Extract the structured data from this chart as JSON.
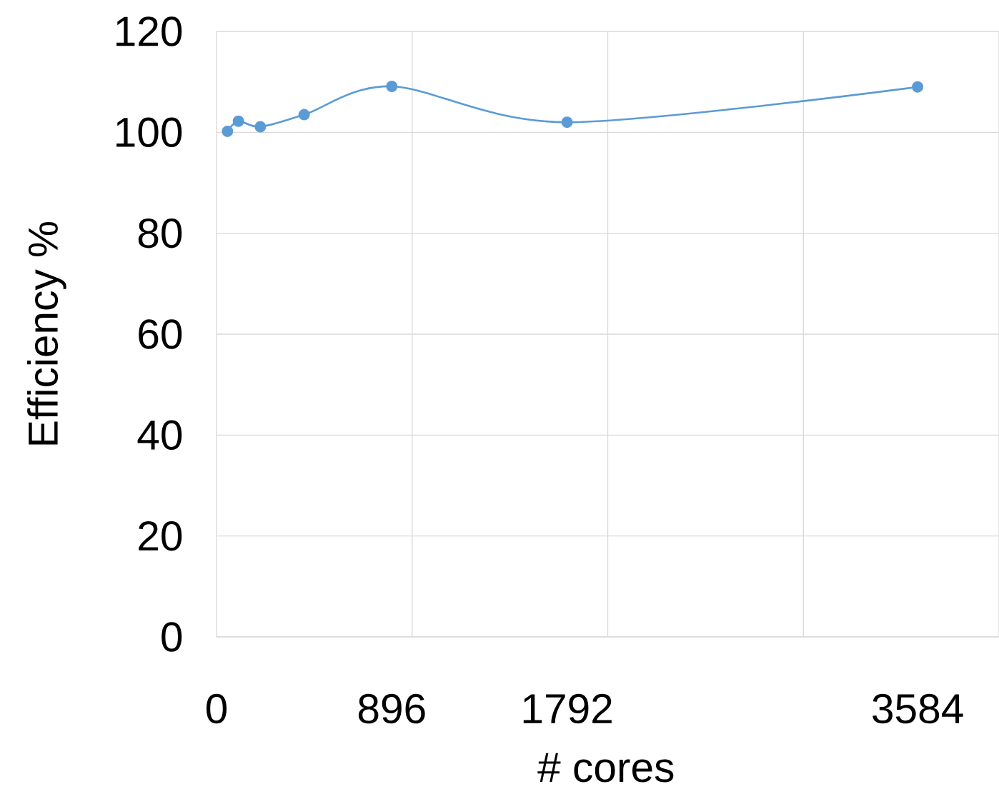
{
  "chart_data": {
    "type": "line",
    "xlabel": "# cores",
    "ylabel": "Efficiency %",
    "x": [
      56,
      112,
      224,
      448,
      896,
      1792,
      3584
    ],
    "series": [
      {
        "color": "#5b9bd5",
        "values": [
          100.2,
          102.2,
          101.1,
          103.5,
          109.1,
          102.0,
          109.0
        ]
      }
    ],
    "xlim": [
      0,
      4000
    ],
    "xticks": [
      0,
      {
        "value": 896,
        "label": "896"
      },
      {
        "value": 1792,
        "label": "1792"
      },
      {
        "value": 3584,
        "label": "3584"
      },
      {
        "value": 1000,
        "label": null
      },
      {
        "value": 2000,
        "label": null
      },
      {
        "value": 3000,
        "label": null
      },
      {
        "value": 4000,
        "label": null
      }
    ],
    "ylim": [
      0,
      120
    ],
    "yticks": [
      0,
      20,
      40,
      60,
      80,
      100,
      120
    ],
    "grid": true,
    "marker": "circle",
    "line_style": "solid"
  }
}
